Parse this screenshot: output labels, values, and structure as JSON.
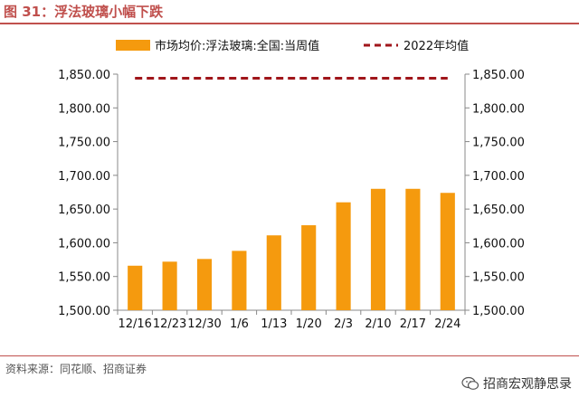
{
  "figure": {
    "title": "图 31：浮法玻璃小幅下跌",
    "source": "资料来源：同花顺、招商证券",
    "brand": "招商宏观静思录"
  },
  "chart_data": {
    "type": "bar",
    "categories": [
      "12/16",
      "12/23",
      "12/30",
      "1/6",
      "1/13",
      "1/20",
      "2/3",
      "2/10",
      "2/17",
      "2/24"
    ],
    "series": [
      {
        "name": "市场均价:浮法玻璃:全国:当周值",
        "type": "bar",
        "color": "#f59a0e",
        "values": [
          1566,
          1572,
          1576,
          1588,
          1611,
          1626,
          1660,
          1680,
          1680,
          1674
        ]
      },
      {
        "name": "2022年均值",
        "type": "dashed-line",
        "color": "#a0161b",
        "values": [
          1844,
          1844,
          1844,
          1844,
          1844,
          1844,
          1844,
          1844,
          1844,
          1844
        ]
      }
    ],
    "ylim": [
      1500,
      1850
    ],
    "yticks": [
      "1,500.00",
      "1,550.00",
      "1,600.00",
      "1,650.00",
      "1,700.00",
      "1,750.00",
      "1,800.00",
      "1,850.00"
    ],
    "ytick_values": [
      1500,
      1550,
      1600,
      1650,
      1700,
      1750,
      1800,
      1850
    ],
    "secondary_yaxis": true,
    "legend_position": "top",
    "grid": false
  }
}
